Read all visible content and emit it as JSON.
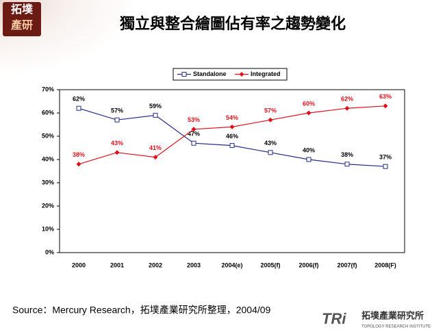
{
  "chart_data": {
    "type": "line",
    "title": "獨立與整合繪圖佔有率之趨勢變化",
    "categories": [
      "2000",
      "2001",
      "2002",
      "2003",
      "2004(e)",
      "2005(f)",
      "2006(f)",
      "2007(f)",
      "2008(F)"
    ],
    "series": [
      {
        "name": "Standalone",
        "color": "#1f2a8c",
        "marker": "square",
        "values": [
          62,
          57,
          59,
          47,
          46,
          43,
          40,
          38,
          37
        ],
        "value_labels": [
          "62%",
          "57%",
          "59%",
          "47%",
          "46%",
          "43%",
          "40%",
          "38%",
          "37%"
        ]
      },
      {
        "name": "Integrated",
        "color": "#e0101a",
        "marker": "diamond",
        "values": [
          38,
          43,
          41,
          53,
          54,
          57,
          60,
          62,
          63
        ],
        "value_labels": [
          "38%",
          "43%",
          "41%",
          "53%",
          "54%",
          "57%",
          "60%",
          "62%",
          "63%"
        ]
      }
    ],
    "ylim": [
      0,
      70
    ],
    "yticks": [
      {
        "value": 0,
        "label": "0%"
      },
      {
        "value": 10,
        "label": "10%"
      },
      {
        "value": 20,
        "label": "20%"
      },
      {
        "value": 30,
        "label": "30%"
      },
      {
        "value": 40,
        "label": "40%"
      },
      {
        "value": 50,
        "label": "50%"
      },
      {
        "value": 60,
        "label": "60%"
      },
      {
        "value": 70,
        "label": "70%"
      }
    ],
    "legend": "top"
  },
  "source": "Source：Mercury Research，拓墣產業研究所整理，2004/09",
  "logo": {
    "top_left": [
      "拓墣",
      "產研"
    ],
    "bottom_right": {
      "mark": "TRi",
      "name": "拓墣產業研究所",
      "english": "TOPOLOGY RESEARCH INSTITUTE"
    }
  }
}
